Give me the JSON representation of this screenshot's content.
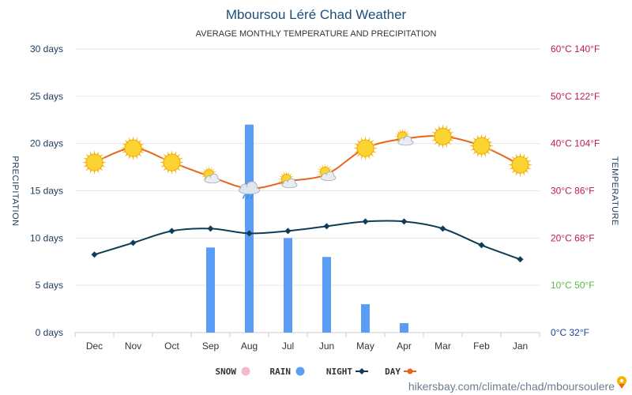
{
  "chart_data": {
    "type": "line",
    "title": "Mboursou Léré Chad Weather",
    "subtitle": "AVERAGE MONTHLY TEMPERATURE AND PRECIPITATION",
    "categories": [
      "Jan",
      "Feb",
      "Mar",
      "Apr",
      "May",
      "Jun",
      "Jul",
      "Aug",
      "Sep",
      "Oct",
      "Nov",
      "Dec"
    ],
    "x_direction": "right-to-left",
    "y_left": {
      "label": "PRECIPITATION",
      "range": [
        0,
        30
      ],
      "ticks": [
        0,
        5,
        10,
        15,
        20,
        25,
        30
      ],
      "tick_labels": [
        "0 days",
        "5 days",
        "10 days",
        "15 days",
        "20 days",
        "25 days",
        "30 days"
      ]
    },
    "y_right": {
      "label": "TEMPERATURE",
      "range_c": [
        0,
        60
      ],
      "ticks_c": [
        0,
        10,
        20,
        30,
        40,
        50,
        60
      ],
      "tick_labels": [
        "0°C 32°F",
        "10°C 50°F",
        "20°C 68°F",
        "30°C 86°F",
        "40°C 104°F",
        "50°C 122°F",
        "60°C 140°F"
      ],
      "tick_colors": [
        "#1e3f9a",
        "#5ab947",
        "#c2185b",
        "#c2185b",
        "#c2185b",
        "#c2185b",
        "#c2185b"
      ]
    },
    "series": [
      {
        "name": "DAY",
        "unit": "°C",
        "color": "#e8641b",
        "values": [
          35.5,
          39.5,
          41.5,
          41,
          39,
          33.5,
          32,
          30.5,
          33,
          36,
          39,
          36
        ]
      },
      {
        "name": "NIGHT",
        "unit": "°C",
        "color": "#0f3d57",
        "values": [
          15.5,
          18.5,
          22,
          23.5,
          23.5,
          22.5,
          21.5,
          21,
          22,
          21.5,
          19,
          16.5
        ]
      },
      {
        "name": "RAIN",
        "unit": "days",
        "color": "#5b9df5",
        "values": [
          0,
          0,
          0,
          1,
          3,
          8,
          10,
          22,
          9,
          0,
          0,
          0
        ]
      },
      {
        "name": "SNOW",
        "unit": "days",
        "color": "#f5b8cf",
        "values": [
          0,
          0,
          0,
          0,
          0,
          0,
          0,
          0,
          0,
          0,
          0,
          0
        ]
      }
    ],
    "weather_icons": [
      "sun",
      "sun",
      "sun",
      "sun-cloud",
      "sun",
      "sun-cloud",
      "sun-cloud",
      "cloud-rain",
      "sun-cloud",
      "sun",
      "sun",
      "sun"
    ],
    "legend": {
      "placement": "bottom-center",
      "items": [
        "DAY",
        "NIGHT",
        "RAIN",
        "SNOW"
      ]
    },
    "grid": true
  },
  "source": "hikersbay.com/climate/chad/mboursoulere"
}
